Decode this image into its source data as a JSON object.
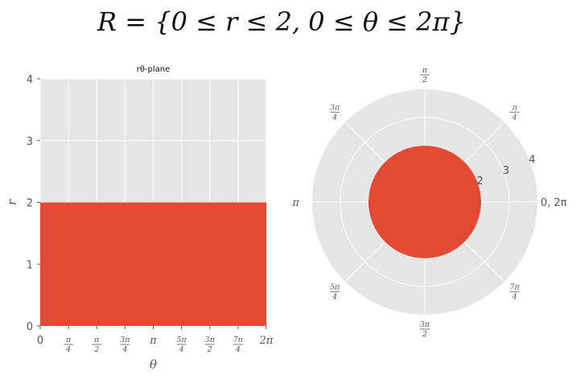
{
  "figure": {
    "suptitle": "R = {0 ≤ r ≤ 2, 0 ≤ θ ≤ 2π}"
  },
  "colors": {
    "region": "#e24a33",
    "axes_bg": "#e5e5e5",
    "grid": "#ffffff",
    "tick_text": "#555555"
  },
  "chart_data": [
    {
      "type": "area",
      "title": "rθ-plane",
      "xlabel": "θ",
      "ylabel": "r",
      "xlim": [
        0,
        6.2832
      ],
      "ylim": [
        0,
        4
      ],
      "x_ticks": [
        {
          "value": 0,
          "label": "0"
        },
        {
          "value": 0.7854,
          "num": "π",
          "den": "4"
        },
        {
          "value": 1.5708,
          "num": "π",
          "den": "2"
        },
        {
          "value": 2.3562,
          "num": "3π",
          "den": "4"
        },
        {
          "value": 3.1416,
          "label": "π"
        },
        {
          "value": 3.927,
          "num": "5π",
          "den": "4"
        },
        {
          "value": 4.7124,
          "num": "3π",
          "den": "2"
        },
        {
          "value": 5.4978,
          "num": "7π",
          "den": "4"
        },
        {
          "value": 6.2832,
          "label": "2π"
        }
      ],
      "y_ticks": [
        0,
        1,
        2,
        3,
        4
      ],
      "region": {
        "theta": [
          0,
          6.2832
        ],
        "r": [
          0,
          2
        ]
      },
      "grid": true
    },
    {
      "type": "area",
      "subtype": "polar",
      "rlim": [
        0,
        4
      ],
      "r_ticks": [
        2,
        3,
        4
      ],
      "theta_ticks": [
        {
          "angle": 0,
          "label": "0, 2π"
        },
        {
          "angle": 45,
          "num": "π",
          "den": "4"
        },
        {
          "angle": 90,
          "num": "π",
          "den": "2"
        },
        {
          "angle": 135,
          "num": "3π",
          "den": "4"
        },
        {
          "angle": 180,
          "label": "π"
        },
        {
          "angle": 225,
          "num": "5π",
          "den": "4"
        },
        {
          "angle": 270,
          "num": "3π",
          "den": "2"
        },
        {
          "angle": 315,
          "num": "7π",
          "den": "4"
        }
      ],
      "region": {
        "theta": [
          0,
          6.2832
        ],
        "r": [
          0,
          2
        ]
      },
      "grid": true
    }
  ]
}
